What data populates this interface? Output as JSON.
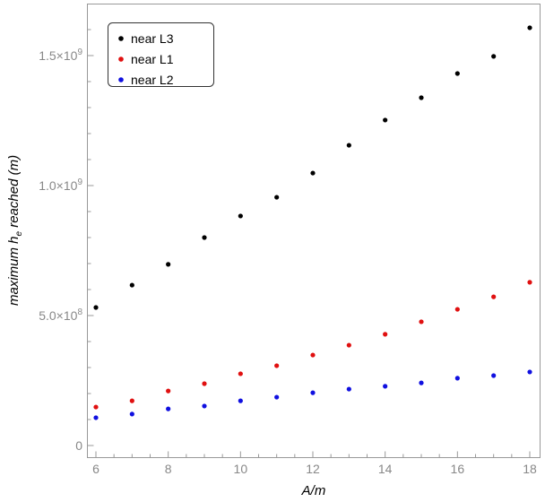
{
  "chart_data": {
    "type": "scatter",
    "title": "",
    "xlabel": "A/m",
    "ylabel_parts": {
      "pre": "maximum h",
      "sub": "e",
      "post": " reached (m)"
    },
    "xlim": [
      5.75,
      18.3
    ],
    "ylim": [
      -45000000.0,
      1700000000.0
    ],
    "x_ticks": [
      6,
      8,
      10,
      12,
      14,
      16,
      18
    ],
    "y_ticks": [
      {
        "value": 0,
        "label": "0"
      },
      {
        "value": 500000000,
        "label_mant": "5.0",
        "label_exp": "8"
      },
      {
        "value": 1000000000,
        "label_mant": "1.0",
        "label_exp": "9"
      },
      {
        "value": 1500000000,
        "label_mant": "1.5",
        "label_exp": "9"
      }
    ],
    "times": "×10",
    "legend_position": "top-left",
    "x": [
      6,
      7,
      8,
      9,
      10,
      11,
      12,
      13,
      14,
      15,
      16,
      17,
      18
    ],
    "series": [
      {
        "name": "near L3",
        "color": "#000000",
        "values": [
          531000000.0,
          617000000.0,
          697000000.0,
          800000000.0,
          883000000.0,
          955000000.0,
          1048000000.0,
          1155000000.0,
          1252000000.0,
          1338000000.0,
          1431000000.0,
          1497000000.0,
          1607000000.0
        ]
      },
      {
        "name": "near L1",
        "color": "#e01010",
        "values": [
          148000000.0,
          172000000.0,
          210000000.0,
          238000000.0,
          276000000.0,
          307000000.0,
          348000000.0,
          386000000.0,
          428000000.0,
          476000000.0,
          524000000.0,
          572000000.0,
          628000000.0
        ]
      },
      {
        "name": "near L2",
        "color": "#1010e0",
        "values": [
          107000000.0,
          121000000.0,
          141000000.0,
          152000000.0,
          172000000.0,
          186000000.0,
          203000000.0,
          217000000.0,
          228000000.0,
          241000000.0,
          259000000.0,
          269000000.0,
          283000000.0
        ]
      }
    ]
  }
}
